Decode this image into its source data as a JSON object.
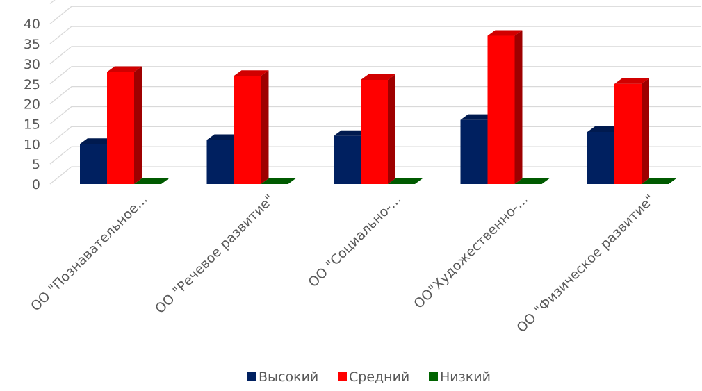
{
  "chart_data": {
    "type": "bar",
    "style": "3d-clustered-column",
    "title": "",
    "xlabel": "",
    "ylabel": "",
    "ylim": [
      0,
      45
    ],
    "yticks": [
      0,
      5,
      10,
      15,
      20,
      25,
      30,
      35,
      40
    ],
    "grid": true,
    "legend_position": "bottom",
    "categories": [
      "ОО \"Познавательное...",
      "ОО \"Речевое развитие\"",
      "ОО \"Социально-...",
      "ОО\"Художественно-...",
      "ОО \"Физическое развитие\""
    ],
    "series": [
      {
        "name": "Высокий",
        "color": "#002060",
        "values": [
          10,
          11,
          12,
          16,
          13
        ]
      },
      {
        "name": "Средний",
        "color": "#ff0000",
        "values": [
          28,
          27,
          26,
          37,
          25
        ]
      },
      {
        "name": "Низкий",
        "color": "#006400",
        "values": [
          0,
          0,
          0,
          0,
          0
        ]
      }
    ]
  }
}
